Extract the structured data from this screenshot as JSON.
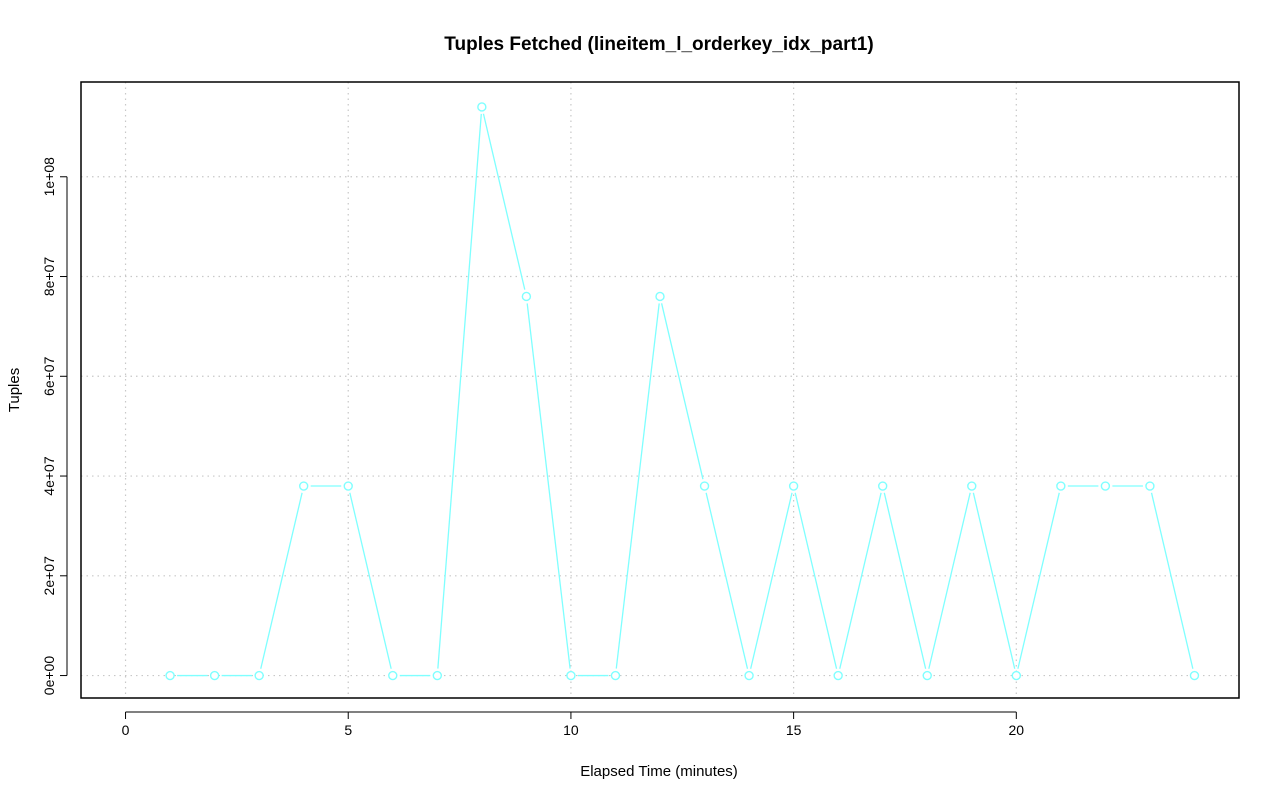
{
  "chart_data": {
    "type": "line",
    "title": "Tuples Fetched (lineitem_l_orderkey_idx_part1)",
    "xlabel": "Elapsed Time (minutes)",
    "ylabel": "Tuples",
    "xlim": [
      -1,
      25
    ],
    "ylim": [
      -4500000,
      119000000
    ],
    "x_ticks": [
      0,
      5,
      10,
      15,
      20
    ],
    "x_tick_labels": [
      "0",
      "5",
      "10",
      "15",
      "20"
    ],
    "y_ticks": [
      0,
      20000000,
      40000000,
      60000000,
      80000000,
      100000000
    ],
    "y_tick_labels": [
      "0e+00",
      "2e+07",
      "4e+07",
      "6e+07",
      "8e+07",
      "1e+08"
    ],
    "grid": true,
    "color": "#7fffff",
    "series": [
      {
        "x": [
          1,
          2,
          3,
          4,
          5,
          6,
          7,
          8,
          9,
          10,
          11,
          12,
          13,
          14,
          15,
          16,
          17,
          18,
          19,
          20,
          21,
          22,
          23,
          24
        ],
        "values": [
          0,
          0,
          0,
          38000000,
          38000000,
          0,
          0,
          114000000,
          76000000,
          0,
          0,
          76000000,
          38000000,
          0,
          38000000,
          0,
          38000000,
          0,
          38000000,
          0,
          38000000,
          38000000,
          38000000,
          0
        ]
      }
    ]
  }
}
